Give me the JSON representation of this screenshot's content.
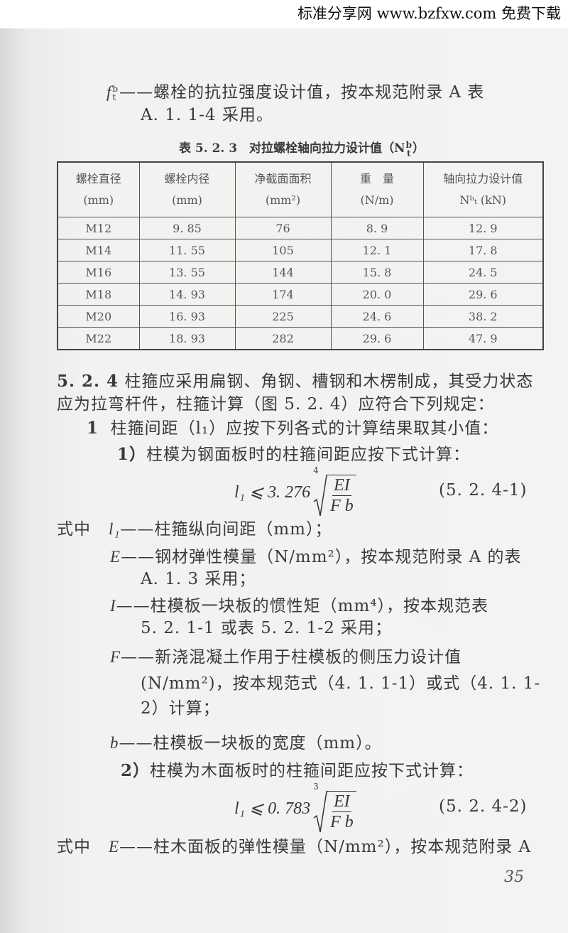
{
  "watermark": "标准分享网 www.bzfxw.com 免费下载",
  "intro": {
    "symbol": "f",
    "sup": "b",
    "sub": "t",
    "line1": "——螺栓的抗拉强度设计值，按本规范附录 A 表",
    "line2": "A. 1. 1-4 采用。"
  },
  "table": {
    "caption": "表 5. 2. 3　对拉螺栓轴向拉力设计值（N",
    "caption_sym_sup": "b",
    "caption_sym_sub": "t",
    "caption_end": "）",
    "headers": [
      {
        "l1": "螺栓直径",
        "l2": "(mm)"
      },
      {
        "l1": "螺栓内径",
        "l2": "(mm)"
      },
      {
        "l1": "净截面面积",
        "l2": "(mm²)"
      },
      {
        "l1": "重　量",
        "l2": "(N/m)"
      },
      {
        "l1": "轴向拉力设计值",
        "l2": "Nᵇₜ (kN)"
      }
    ],
    "rows": [
      [
        "M12",
        "9. 85",
        "76",
        "8. 9",
        "12. 9"
      ],
      [
        "M14",
        "11. 55",
        "105",
        "12. 1",
        "17. 8"
      ],
      [
        "M16",
        "13. 55",
        "144",
        "15. 8",
        "24. 5"
      ],
      [
        "M18",
        "14. 93",
        "174",
        "20. 0",
        "29. 6"
      ],
      [
        "M20",
        "16. 93",
        "225",
        "24. 6",
        "38. 2"
      ],
      [
        "M22",
        "18. 93",
        "282",
        "29. 6",
        "47. 9"
      ]
    ]
  },
  "clause": {
    "num": "5. 2. 4",
    "line1": "柱箍应采用扁钢、角钢、槽钢和木楞制成，其受力状态",
    "line2": "应为拉弯杆件，柱箍计算（图 5. 2. 4）应符合下列规定："
  },
  "item1": {
    "num": "1",
    "text": "柱箍间距（l₁）应按下列各式的计算结果取其小值："
  },
  "sub1": {
    "num": "1）",
    "text": "柱模为钢面板时的柱箍间距应按下式计算："
  },
  "formula1": {
    "lhs": "l₁ ⩽ 3. 276",
    "index": "4",
    "num": "EI",
    "den": "F b",
    "label": "(5. 2. 4-1)"
  },
  "where1": [
    {
      "prefix": "式中",
      "sym": "l₁",
      "lines": [
        "——柱箍纵向间距（mm）；"
      ]
    },
    {
      "sym": "E",
      "lines": [
        "——钢材弹性模量（N/mm²），按本规范附录 A 的表",
        "A. 1. 3 采用；"
      ]
    },
    {
      "sym": "I",
      "lines": [
        "——柱模板一块板的惯性矩（mm⁴），按本规范表",
        "5. 2. 1-1 或表 5. 2. 1-2 采用；"
      ]
    },
    {
      "sym": "F",
      "lines": [
        "——新浇混凝土作用于柱模板的侧压力设计值",
        "(N/mm²)，按本规范式（4. 1. 1-1）或式（4. 1. 1-",
        "2）计算；"
      ]
    },
    {
      "sym": "b",
      "lines": [
        "——柱模板一块板的宽度（mm）。"
      ]
    }
  ],
  "sub2": {
    "num": "2）",
    "text": "柱模为木面板时的柱箍间距应按下式计算："
  },
  "formula2": {
    "lhs": "l₁ ⩽ 0. 783",
    "index": "3",
    "num": "EI",
    "den": "F b",
    "label": "(5. 2. 4-2)"
  },
  "where2": {
    "prefix": "式中",
    "sym": "E",
    "text": "——柱木面板的弹性模量（N/mm²），按本规范附录 A"
  },
  "page_number": "35"
}
